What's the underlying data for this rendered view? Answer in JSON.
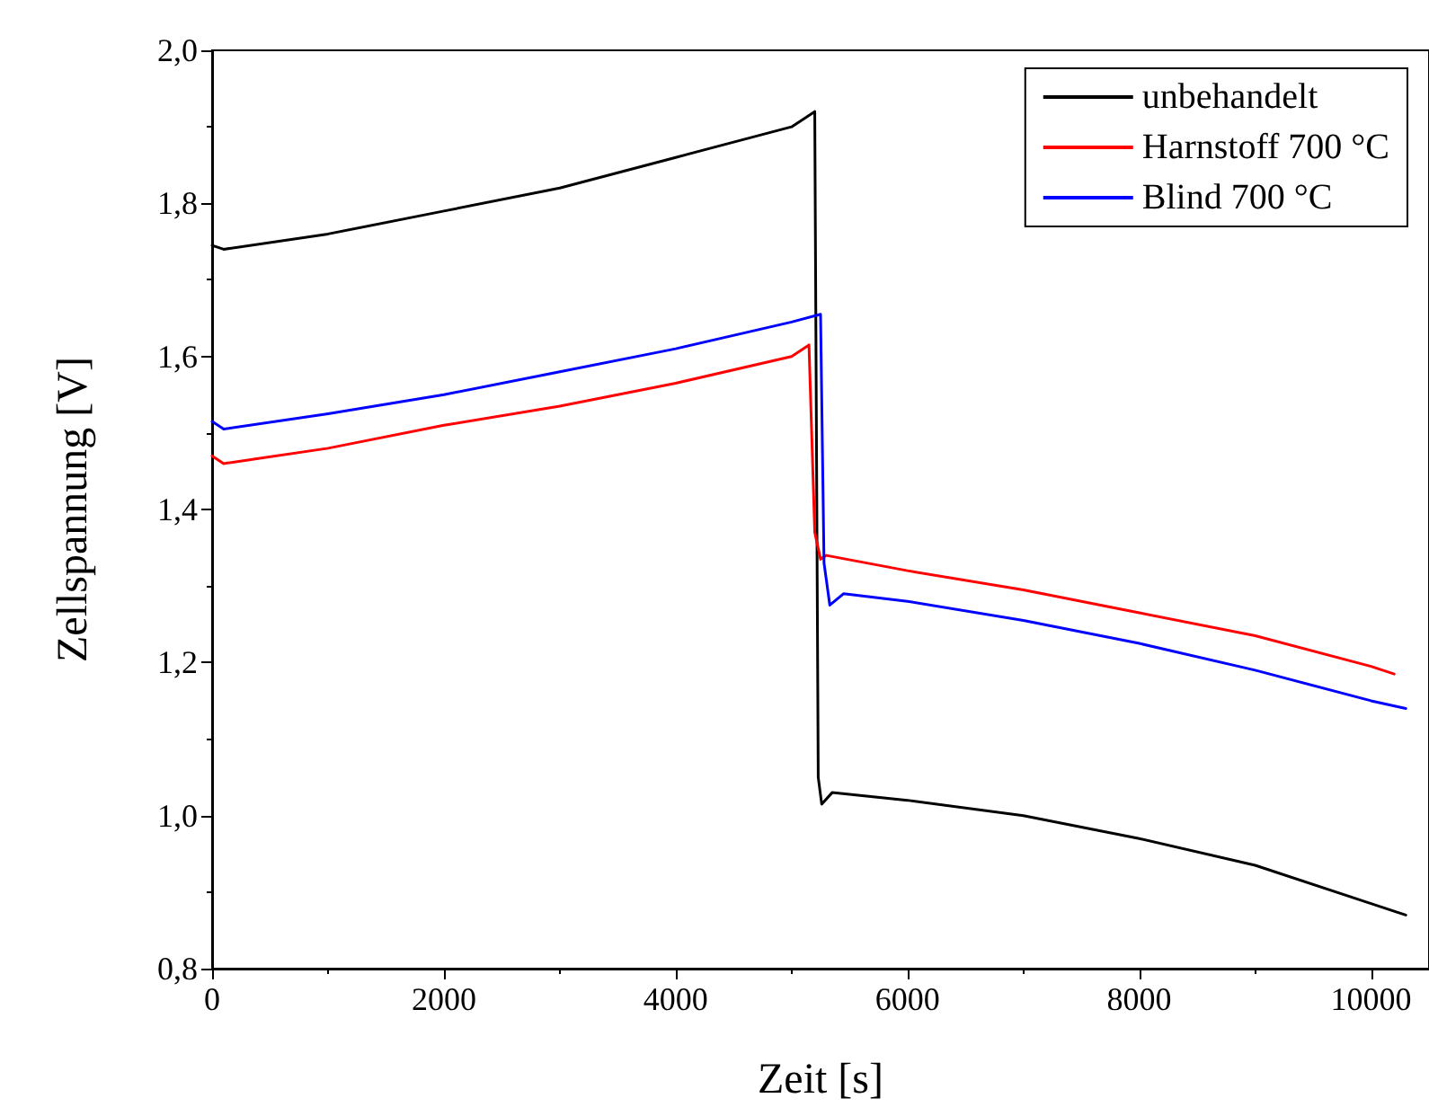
{
  "chart_data": {
    "type": "line",
    "xlabel": "Zeit [s]",
    "ylabel": "Zellspannung [V]",
    "xlim": [
      0,
      10500
    ],
    "xticks": [
      0,
      2000,
      4000,
      6000,
      8000,
      10000
    ],
    "ylim": [
      0.8,
      2.0
    ],
    "yticks": [
      {
        "value": 0.8,
        "label": "0,8"
      },
      {
        "value": 1.0,
        "label": "1,0"
      },
      {
        "value": 1.2,
        "label": "1,2"
      },
      {
        "value": 1.4,
        "label": "1,4"
      },
      {
        "value": 1.6,
        "label": "1,6"
      },
      {
        "value": 1.8,
        "label": "1,8"
      },
      {
        "value": 2.0,
        "label": "2,0"
      }
    ],
    "grid": false,
    "legend": "top right",
    "marker": "none",
    "line_style": "solid",
    "series": [
      {
        "name": "unbehandelt",
        "color": "#000000",
        "x": [
          0,
          100,
          1000,
          2000,
          3000,
          4000,
          5000,
          5200,
          5230,
          5260,
          5350,
          6000,
          7000,
          8000,
          9000,
          10000,
          10300
        ],
        "values": [
          1.745,
          1.74,
          1.76,
          1.79,
          1.82,
          1.86,
          1.9,
          1.92,
          1.05,
          1.015,
          1.03,
          1.02,
          1.0,
          0.97,
          0.935,
          0.885,
          0.87
        ]
      },
      {
        "name": "Harnstoff 700 °C",
        "color": "#ff0000",
        "x": [
          0,
          100,
          1000,
          2000,
          3000,
          4000,
          5000,
          5150,
          5200,
          5250,
          5300,
          6000,
          7000,
          8000,
          9000,
          10000,
          10200
        ],
        "values": [
          1.47,
          1.46,
          1.48,
          1.51,
          1.535,
          1.565,
          1.6,
          1.615,
          1.37,
          1.335,
          1.34,
          1.32,
          1.295,
          1.265,
          1.235,
          1.195,
          1.185
        ]
      },
      {
        "name": "Blind 700 °C",
        "color": "#0000ff",
        "x": [
          0,
          100,
          1000,
          2000,
          3000,
          4000,
          5000,
          5250,
          5280,
          5330,
          5450,
          6000,
          7000,
          8000,
          9000,
          10000,
          10300
        ],
        "values": [
          1.515,
          1.505,
          1.525,
          1.55,
          1.58,
          1.61,
          1.645,
          1.655,
          1.33,
          1.275,
          1.29,
          1.28,
          1.255,
          1.225,
          1.19,
          1.15,
          1.14
        ]
      }
    ]
  }
}
